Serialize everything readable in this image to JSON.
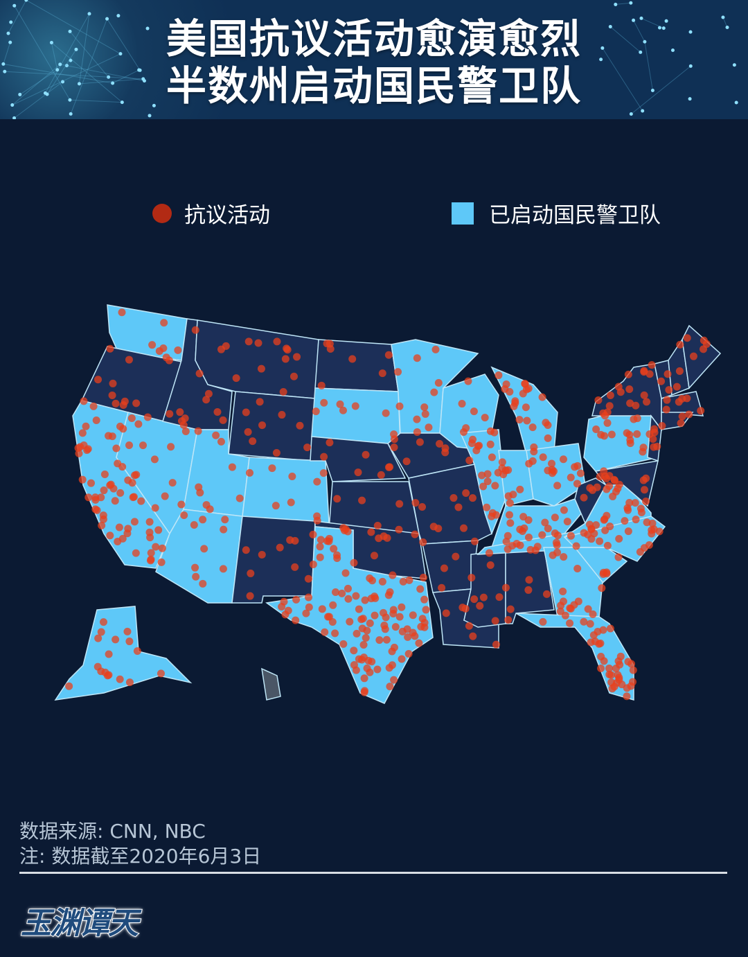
{
  "header": {
    "title_line1": "美国抗议活动愈演愈烈",
    "title_line2": "半数州启动国民警卫队"
  },
  "legend": {
    "protest_label": "抗议活动",
    "guard_label": "已启动国民警卫队"
  },
  "colors": {
    "background": "#0b1a33",
    "guard_state": "#5ec8f8",
    "no_guard_state": "#1c2f58",
    "protest_dot": "#e8401c",
    "hawaii": "#4a5666"
  },
  "states": [
    {
      "id": "WA",
      "guard": true
    },
    {
      "id": "OR",
      "guard": false
    },
    {
      "id": "CA",
      "guard": true
    },
    {
      "id": "NV",
      "guard": true
    },
    {
      "id": "ID",
      "guard": false
    },
    {
      "id": "MT",
      "guard": false
    },
    {
      "id": "WY",
      "guard": false
    },
    {
      "id": "UT",
      "guard": true
    },
    {
      "id": "CO",
      "guard": true
    },
    {
      "id": "AZ",
      "guard": true
    },
    {
      "id": "NM",
      "guard": false
    },
    {
      "id": "ND",
      "guard": false
    },
    {
      "id": "SD",
      "guard": true
    },
    {
      "id": "NE",
      "guard": false
    },
    {
      "id": "KS",
      "guard": false
    },
    {
      "id": "OK",
      "guard": false
    },
    {
      "id": "TX",
      "guard": true
    },
    {
      "id": "MN",
      "guard": true
    },
    {
      "id": "IA",
      "guard": false
    },
    {
      "id": "MO",
      "guard": false
    },
    {
      "id": "AR",
      "guard": false
    },
    {
      "id": "LA",
      "guard": false
    },
    {
      "id": "MS",
      "guard": false
    },
    {
      "id": "AL",
      "guard": false
    },
    {
      "id": "WI",
      "guard": true
    },
    {
      "id": "IL",
      "guard": true
    },
    {
      "id": "MI",
      "guard": true
    },
    {
      "id": "IN",
      "guard": true
    },
    {
      "id": "OH",
      "guard": true
    },
    {
      "id": "KY",
      "guard": true
    },
    {
      "id": "TN",
      "guard": true
    },
    {
      "id": "WV",
      "guard": false
    },
    {
      "id": "VA",
      "guard": true
    },
    {
      "id": "NC",
      "guard": true
    },
    {
      "id": "SC",
      "guard": true
    },
    {
      "id": "GA",
      "guard": true
    },
    {
      "id": "FL",
      "guard": true
    },
    {
      "id": "PA",
      "guard": true
    },
    {
      "id": "NY",
      "guard": false
    },
    {
      "id": "NJ",
      "guard": false
    },
    {
      "id": "MD",
      "guard": false
    },
    {
      "id": "VT",
      "guard": false
    },
    {
      "id": "NH",
      "guard": false
    },
    {
      "id": "ME",
      "guard": false
    },
    {
      "id": "MA",
      "guard": false
    },
    {
      "id": "CT",
      "guard": false
    },
    {
      "id": "AK",
      "guard": true
    },
    {
      "id": "HI",
      "guard": false
    }
  ],
  "footer": {
    "source": "数据来源: CNN, NBC",
    "note": "注: 数据截至2020年6月3日"
  },
  "logo": "玉渊谭天"
}
